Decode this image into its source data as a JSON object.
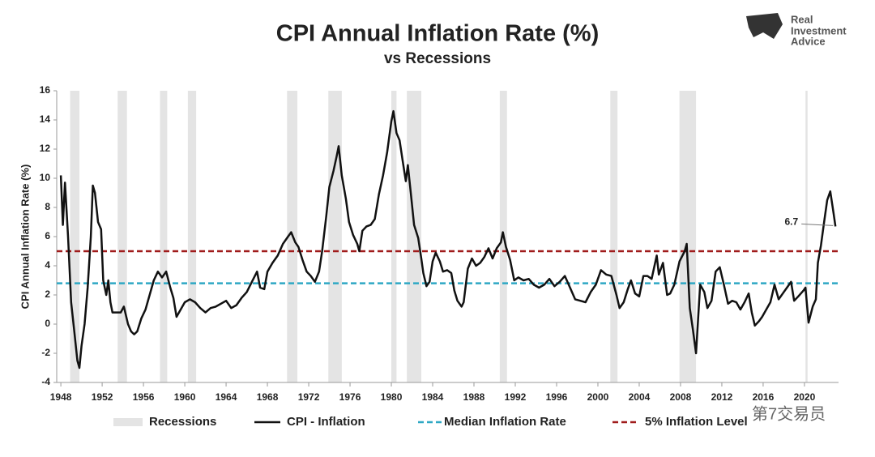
{
  "chart_data": {
    "type": "line",
    "title": "CPI Annual Inflation Rate (%)",
    "subtitle": "vs Recessions",
    "y_label": "CPI Annual Inflation Rate (%)",
    "xlim": [
      1947.6,
      2023.3
    ],
    "ylim": [
      -4,
      16
    ],
    "xticks": [
      1948,
      1952,
      1956,
      1960,
      1964,
      1968,
      1972,
      1976,
      1980,
      1984,
      1988,
      1992,
      1996,
      2000,
      2004,
      2008,
      2012,
      2016,
      2020
    ],
    "yticks": [
      -4,
      -2,
      0,
      2,
      4,
      6,
      8,
      10,
      12,
      14,
      16
    ],
    "recessions": {
      "name": "Recessions",
      "color": "#e4e4e4",
      "spans": [
        [
          1948.9,
          1949.8
        ],
        [
          1953.5,
          1954.4
        ],
        [
          1957.6,
          1958.3
        ],
        [
          1960.3,
          1961.1
        ],
        [
          1969.9,
          1970.9
        ],
        [
          1973.9,
          1975.2
        ],
        [
          1980.0,
          1980.5
        ],
        [
          1981.5,
          1982.9
        ],
        [
          1990.5,
          1991.2
        ],
        [
          2001.2,
          2001.9
        ],
        [
          2007.9,
          2009.5
        ],
        [
          2020.1,
          2020.3
        ]
      ]
    },
    "x": [
      1948.0,
      1948.2,
      1948.4,
      1948.7,
      1949.0,
      1949.3,
      1949.6,
      1949.8,
      1950.0,
      1950.3,
      1950.6,
      1950.9,
      1951.1,
      1951.3,
      1951.6,
      1951.9,
      1952.1,
      1952.4,
      1952.6,
      1952.8,
      1953.0,
      1953.4,
      1953.8,
      1954.1,
      1954.5,
      1954.8,
      1955.1,
      1955.4,
      1955.8,
      1956.2,
      1956.6,
      1957.0,
      1957.4,
      1957.8,
      1958.2,
      1958.6,
      1958.9,
      1959.2,
      1959.6,
      1960.0,
      1960.5,
      1961.0,
      1961.5,
      1962.0,
      1962.5,
      1963.0,
      1963.5,
      1964.0,
      1964.5,
      1965.0,
      1965.5,
      1966.0,
      1966.5,
      1967.0,
      1967.3,
      1967.7,
      1968.0,
      1968.5,
      1969.0,
      1969.5,
      1970.0,
      1970.3,
      1970.7,
      1971.0,
      1971.4,
      1971.8,
      1972.2,
      1972.6,
      1973.0,
      1973.3,
      1973.7,
      1974.0,
      1974.4,
      1974.7,
      1974.9,
      1975.2,
      1975.6,
      1975.9,
      1976.3,
      1976.7,
      1976.9,
      1977.2,
      1977.6,
      1978.0,
      1978.4,
      1978.8,
      1979.2,
      1979.6,
      1980.0,
      1980.2,
      1980.5,
      1980.8,
      1981.1,
      1981.4,
      1981.6,
      1981.9,
      1982.2,
      1982.6,
      1982.9,
      1983.1,
      1983.4,
      1983.7,
      1984.0,
      1984.3,
      1984.7,
      1985.0,
      1985.4,
      1985.8,
      1986.1,
      1986.4,
      1986.8,
      1987.0,
      1987.4,
      1987.8,
      1988.2,
      1988.6,
      1989.0,
      1989.4,
      1989.8,
      1990.2,
      1990.6,
      1990.8,
      1991.1,
      1991.5,
      1991.9,
      1992.3,
      1992.8,
      1993.3,
      1993.8,
      1994.3,
      1994.8,
      1995.3,
      1995.8,
      1996.3,
      1996.8,
      1997.3,
      1997.8,
      1998.3,
      1998.8,
      1999.3,
      1999.8,
      2000.3,
      2000.8,
      2001.3,
      2001.8,
      2002.1,
      2002.5,
      2002.9,
      2003.2,
      2003.6,
      2004.0,
      2004.4,
      2004.8,
      2005.2,
      2005.7,
      2005.9,
      2006.3,
      2006.7,
      2007.0,
      2007.4,
      2007.9,
      2008.4,
      2008.6,
      2008.9,
      2009.2,
      2009.5,
      2009.9,
      2010.3,
      2010.6,
      2011.0,
      2011.4,
      2011.8,
      2012.2,
      2012.6,
      2013.0,
      2013.4,
      2013.8,
      2014.2,
      2014.6,
      2014.9,
      2015.2,
      2015.6,
      2015.9,
      2016.3,
      2016.7,
      2017.1,
      2017.5,
      2017.9,
      2018.3,
      2018.7,
      2019.0,
      2019.4,
      2019.9,
      2020.1,
      2020.4,
      2020.8,
      2021.1,
      2021.3,
      2021.6,
      2021.9,
      2022.2,
      2022.5,
      2022.8,
      2023.0
    ],
    "series": [
      {
        "name": "CPI - Inflation",
        "color": "#111111",
        "values": [
          10.2,
          6.8,
          9.7,
          6.0,
          1.5,
          -0.5,
          -2.5,
          -3.0,
          -1.5,
          0,
          2.5,
          6,
          9.5,
          9.0,
          7,
          6.5,
          3,
          2,
          3,
          1.5,
          0.8,
          0.8,
          0.8,
          1.2,
          0,
          -0.5,
          -0.7,
          -0.5,
          0.4,
          1.0,
          2.0,
          3.0,
          3.6,
          3.2,
          3.6,
          2.5,
          1.8,
          0.5,
          1.0,
          1.5,
          1.7,
          1.5,
          1.1,
          0.8,
          1.1,
          1.2,
          1.4,
          1.6,
          1.1,
          1.3,
          1.8,
          2.2,
          2.9,
          3.6,
          2.5,
          2.4,
          3.6,
          4.2,
          4.7,
          5.5,
          6.0,
          6.3,
          5.6,
          5.3,
          4.4,
          3.6,
          3.3,
          2.9,
          3.6,
          5.0,
          7.4,
          9.4,
          10.5,
          11.5,
          12.2,
          10.2,
          8.6,
          7.0,
          6.1,
          5.5,
          5.0,
          6.4,
          6.7,
          6.8,
          7.2,
          8.9,
          10.2,
          11.8,
          13.9,
          14.6,
          13.1,
          12.6,
          11.2,
          9.8,
          10.9,
          8.9,
          6.8,
          5.9,
          4.5,
          3.5,
          2.6,
          2.9,
          4.3,
          4.9,
          4.3,
          3.6,
          3.7,
          3.5,
          2.3,
          1.6,
          1.2,
          1.5,
          3.8,
          4.5,
          4.0,
          4.2,
          4.6,
          5.2,
          4.5,
          5.2,
          5.6,
          6.3,
          5.3,
          4.4,
          3.0,
          3.2,
          3.0,
          3.1,
          2.7,
          2.5,
          2.7,
          3.1,
          2.6,
          2.9,
          3.3,
          2.5,
          1.7,
          1.6,
          1.5,
          2.2,
          2.7,
          3.7,
          3.4,
          3.3,
          2.0,
          1.1,
          1.5,
          2.4,
          3.0,
          2.1,
          1.9,
          3.3,
          3.3,
          3.1,
          4.7,
          3.4,
          4.2,
          2.0,
          2.1,
          2.7,
          4.3,
          5.0,
          5.5,
          1.1,
          -0.4,
          -2.0,
          2.7,
          2.2,
          1.1,
          1.6,
          3.6,
          3.9,
          2.7,
          1.4,
          1.6,
          1.5,
          1.0,
          1.5,
          2.1,
          0.8,
          -0.1,
          0.2,
          0.5,
          1.0,
          1.5,
          2.7,
          1.7,
          2.1,
          2.5,
          2.9,
          1.6,
          1.9,
          2.3,
          2.5,
          0.1,
          1.2,
          1.7,
          4.2,
          5.4,
          7.0,
          8.5,
          9.1,
          7.7,
          6.7
        ]
      }
    ],
    "reference_lines": [
      {
        "name": "Median Inflation Rate",
        "value": 2.8,
        "color": "#2ea8c4"
      },
      {
        "name": "5% Inflation Level",
        "value": 5,
        "color": "#a01c1c"
      }
    ]
  },
  "logo": [
    "Real",
    "Investment",
    "Advice"
  ],
  "watermark": "第7交易员"
}
